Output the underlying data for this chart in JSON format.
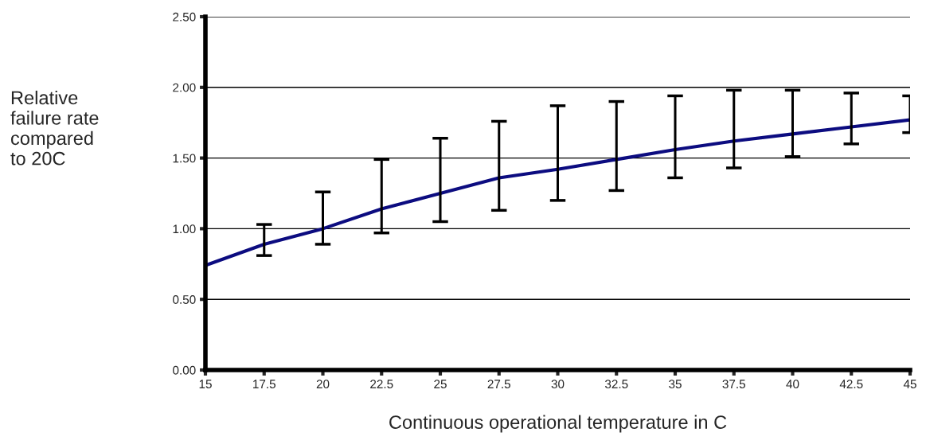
{
  "chart_data": {
    "type": "line",
    "xlabel": "Continuous operational temperature in C",
    "ylabel": "Relative\nfailure rate\ncompared\nto 20C",
    "x": [
      15,
      17.5,
      20,
      22.5,
      25,
      27.5,
      30,
      32.5,
      35,
      37.5,
      40,
      42.5,
      45
    ],
    "series": [
      {
        "color": "#0c0c80",
        "values": [
          0.74,
          0.89,
          1.0,
          1.14,
          1.25,
          1.36,
          1.42,
          1.49,
          1.56,
          1.62,
          1.67,
          1.72,
          1.77
        ],
        "errors": [
          null,
          [
            0.81,
            1.03
          ],
          [
            0.89,
            1.26
          ],
          [
            0.97,
            1.49
          ],
          [
            1.05,
            1.64
          ],
          [
            1.13,
            1.76
          ],
          [
            1.2,
            1.87
          ],
          [
            1.27,
            1.9
          ],
          [
            1.36,
            1.94
          ],
          [
            1.43,
            1.98
          ],
          [
            1.51,
            1.98
          ],
          [
            1.6,
            1.96
          ],
          [
            1.68,
            1.94
          ]
        ]
      }
    ],
    "xlim": [
      15,
      45
    ],
    "xticks": [
      15,
      17.5,
      20,
      22.5,
      25,
      27.5,
      30,
      32.5,
      35,
      37.5,
      40,
      42.5,
      45
    ],
    "ylim": [
      0,
      2.5
    ],
    "yticks": [
      {
        "value": 0,
        "label": "0.00"
      },
      {
        "value": 0.5,
        "label": "0.50"
      },
      {
        "value": 1,
        "label": "1.00"
      },
      {
        "value": 1.5,
        "label": "1.50"
      },
      {
        "value": 2,
        "label": "2.00"
      },
      {
        "value": 2.5,
        "label": "2.50"
      }
    ],
    "grid": "y",
    "marker": "none",
    "line_style": "solid"
  }
}
